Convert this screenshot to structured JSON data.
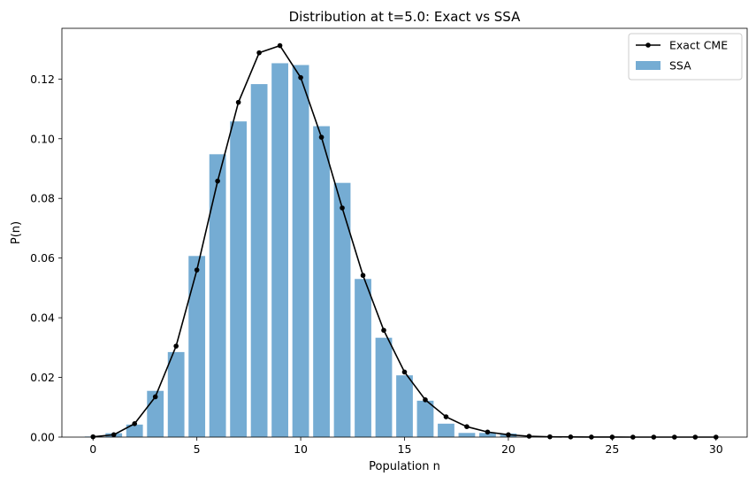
{
  "chart_data": {
    "type": "bar",
    "title": "Distribution at t=5.0: Exact vs SSA",
    "xlabel": "Population n",
    "ylabel": "P(n)",
    "xlim": [
      -1.5,
      31.5
    ],
    "ylim": [
      0,
      0.137
    ],
    "xticks": [
      0,
      5,
      10,
      15,
      20,
      25,
      30
    ],
    "yticks": [
      0.0,
      0.02,
      0.04,
      0.06,
      0.08,
      0.1,
      0.12
    ],
    "ytick_labels": [
      "0.00",
      "0.02",
      "0.04",
      "0.06",
      "0.08",
      "0.10",
      "0.12"
    ],
    "legend_position": "top-right",
    "series": [
      {
        "name": "Exact CME",
        "kind": "line",
        "color": "#000000",
        "marker": "circle",
        "x": [
          0,
          1,
          2,
          3,
          4,
          5,
          6,
          7,
          8,
          9,
          10,
          11,
          12,
          13,
          14,
          15,
          16,
          17,
          18,
          19,
          20,
          21,
          22,
          23,
          24,
          25,
          26,
          27,
          28,
          29,
          30
        ],
        "values": [
          0.0001,
          0.0008,
          0.0045,
          0.0135,
          0.0305,
          0.056,
          0.0858,
          0.1122,
          0.1288,
          0.1312,
          0.1205,
          0.1005,
          0.0768,
          0.0542,
          0.0358,
          0.0218,
          0.0125,
          0.0068,
          0.0035,
          0.0017,
          0.0008,
          0.0003,
          0.0001,
          5e-05,
          2e-05,
          1e-05,
          0,
          0,
          0,
          0,
          0
        ]
      },
      {
        "name": "SSA",
        "kind": "bar",
        "color": "#75acd3",
        "x": [
          0,
          1,
          2,
          3,
          4,
          5,
          6,
          7,
          8,
          9,
          10,
          11,
          12,
          13,
          14,
          15,
          16,
          17,
          18,
          19,
          20,
          21,
          22,
          23,
          24,
          25,
          26,
          27,
          28,
          29,
          30
        ],
        "values": [
          0.0002,
          0.0013,
          0.0042,
          0.0155,
          0.0285,
          0.0607,
          0.0948,
          0.1058,
          0.1183,
          0.1253,
          0.1247,
          0.1042,
          0.0852,
          0.053,
          0.0333,
          0.0207,
          0.0122,
          0.0045,
          0.0014,
          0.0014,
          0.0012,
          0,
          0,
          0,
          0,
          0,
          0,
          0,
          0,
          0,
          0
        ]
      }
    ]
  }
}
